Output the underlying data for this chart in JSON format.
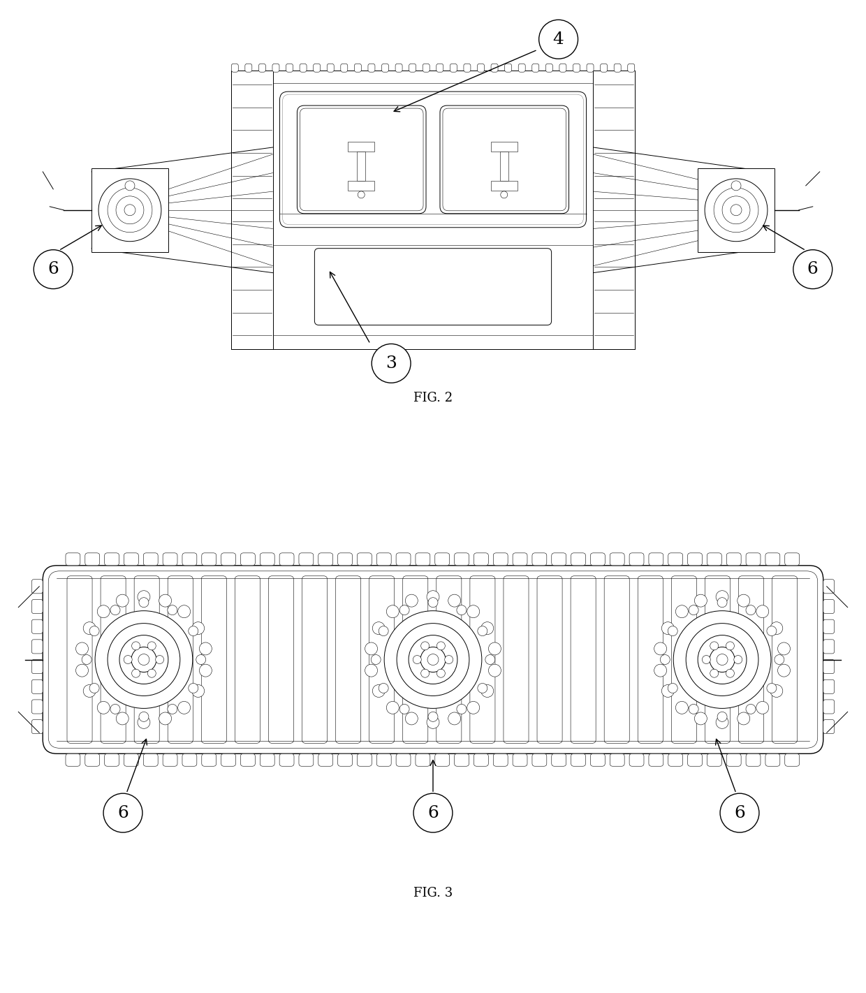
{
  "fig_width": 12.4,
  "fig_height": 14.22,
  "background_color": "#ffffff",
  "fig2_label": "FIG. 2",
  "fig3_label": "FIG. 3",
  "label_fontsize": 13,
  "callout_fontsize": 18,
  "line_color": "#000000"
}
